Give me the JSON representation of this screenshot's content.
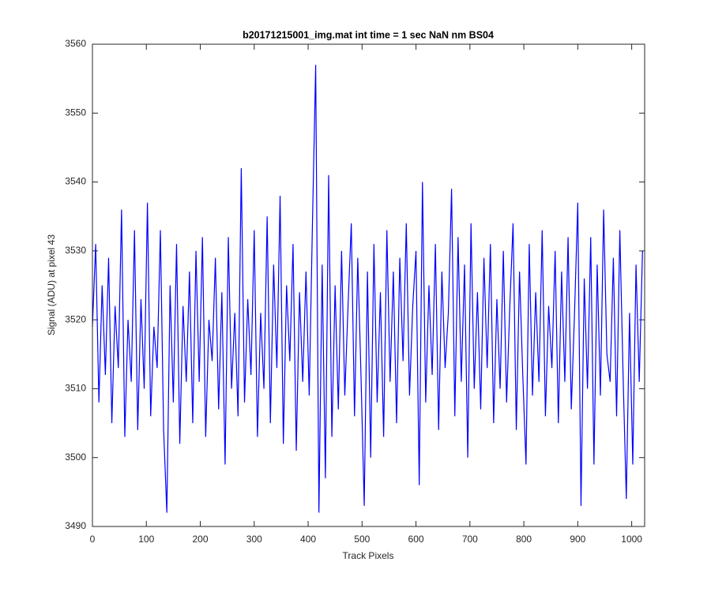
{
  "chart_data": {
    "type": "line",
    "title": "b20171215001_img.mat int time = 1 sec  NaN nm BS04",
    "xlabel": "Track Pixels",
    "ylabel": "Signal (ADU) at pixel 43",
    "xlim": [
      0,
      1024
    ],
    "ylim": [
      3490,
      3560
    ],
    "xticks": [
      0,
      100,
      200,
      300,
      400,
      500,
      600,
      700,
      800,
      900,
      1000
    ],
    "yticks": [
      3490,
      3500,
      3510,
      3520,
      3530,
      3540,
      3550,
      3560
    ],
    "grid": false,
    "x": [
      0,
      6,
      12,
      18,
      24,
      30,
      36,
      42,
      48,
      54,
      60,
      66,
      72,
      78,
      84,
      90,
      96,
      102,
      108,
      114,
      120,
      126,
      132,
      138,
      144,
      150,
      156,
      162,
      168,
      174,
      180,
      186,
      192,
      198,
      204,
      210,
      216,
      222,
      228,
      234,
      240,
      246,
      252,
      258,
      264,
      270,
      276,
      282,
      288,
      294,
      300,
      306,
      312,
      318,
      324,
      330,
      336,
      342,
      348,
      354,
      360,
      366,
      372,
      378,
      384,
      390,
      396,
      402,
      408,
      414,
      420,
      426,
      432,
      438,
      444,
      450,
      456,
      462,
      468,
      474,
      480,
      486,
      492,
      498,
      504,
      510,
      516,
      522,
      528,
      534,
      540,
      546,
      552,
      558,
      564,
      570,
      576,
      582,
      588,
      594,
      600,
      606,
      612,
      618,
      624,
      630,
      636,
      642,
      648,
      654,
      660,
      666,
      672,
      678,
      684,
      690,
      696,
      702,
      708,
      714,
      720,
      726,
      732,
      738,
      744,
      750,
      756,
      762,
      768,
      774,
      780,
      786,
      792,
      798,
      804,
      810,
      816,
      822,
      828,
      834,
      840,
      846,
      852,
      858,
      864,
      870,
      876,
      882,
      888,
      894,
      900,
      906,
      912,
      918,
      924,
      930,
      936,
      942,
      948,
      954,
      960,
      966,
      972,
      978,
      984,
      990,
      996,
      1002,
      1008,
      1014,
      1020
    ],
    "series": [
      {
        "name": "pixel 43",
        "color": "#0000ff",
        "values": [
          3519,
          3531,
          3508,
          3525,
          3512,
          3529,
          3505,
          3522,
          3513,
          3536,
          3503,
          3520,
          3511,
          3533,
          3504,
          3523,
          3510,
          3537,
          3506,
          3519,
          3513,
          3533,
          3504,
          3492,
          3525,
          3508,
          3531,
          3502,
          3522,
          3511,
          3527,
          3505,
          3530,
          3511,
          3532,
          3503,
          3520,
          3514,
          3529,
          3507,
          3524,
          3499,
          3532,
          3510,
          3521,
          3506,
          3542,
          3508,
          3523,
          3512,
          3533,
          3503,
          3521,
          3510,
          3535,
          3505,
          3528,
          3513,
          3538,
          3502,
          3525,
          3514,
          3531,
          3501,
          3524,
          3511,
          3527,
          3509,
          3534,
          3557,
          3492,
          3528,
          3497,
          3541,
          3503,
          3525,
          3507,
          3530,
          3509,
          3522,
          3534,
          3506,
          3529,
          3512,
          3493,
          3527,
          3500,
          3531,
          3508,
          3524,
          3503,
          3533,
          3511,
          3527,
          3505,
          3529,
          3514,
          3534,
          3509,
          3522,
          3530,
          3496,
          3540,
          3508,
          3525,
          3512,
          3531,
          3504,
          3527,
          3513,
          3521,
          3539,
          3506,
          3532,
          3511,
          3528,
          3500,
          3534,
          3510,
          3524,
          3507,
          3529,
          3513,
          3531,
          3505,
          3523,
          3510,
          3530,
          3508,
          3522,
          3534,
          3504,
          3527,
          3512,
          3499,
          3531,
          3509,
          3524,
          3511,
          3533,
          3506,
          3522,
          3513,
          3530,
          3505,
          3527,
          3511,
          3532,
          3507,
          3521,
          3537,
          3493,
          3526,
          3510,
          3532,
          3499,
          3528,
          3509,
          3536,
          3515,
          3511,
          3529,
          3506,
          3533,
          3512,
          3494,
          3521,
          3499,
          3528,
          3511,
          3530
        ]
      }
    ]
  }
}
